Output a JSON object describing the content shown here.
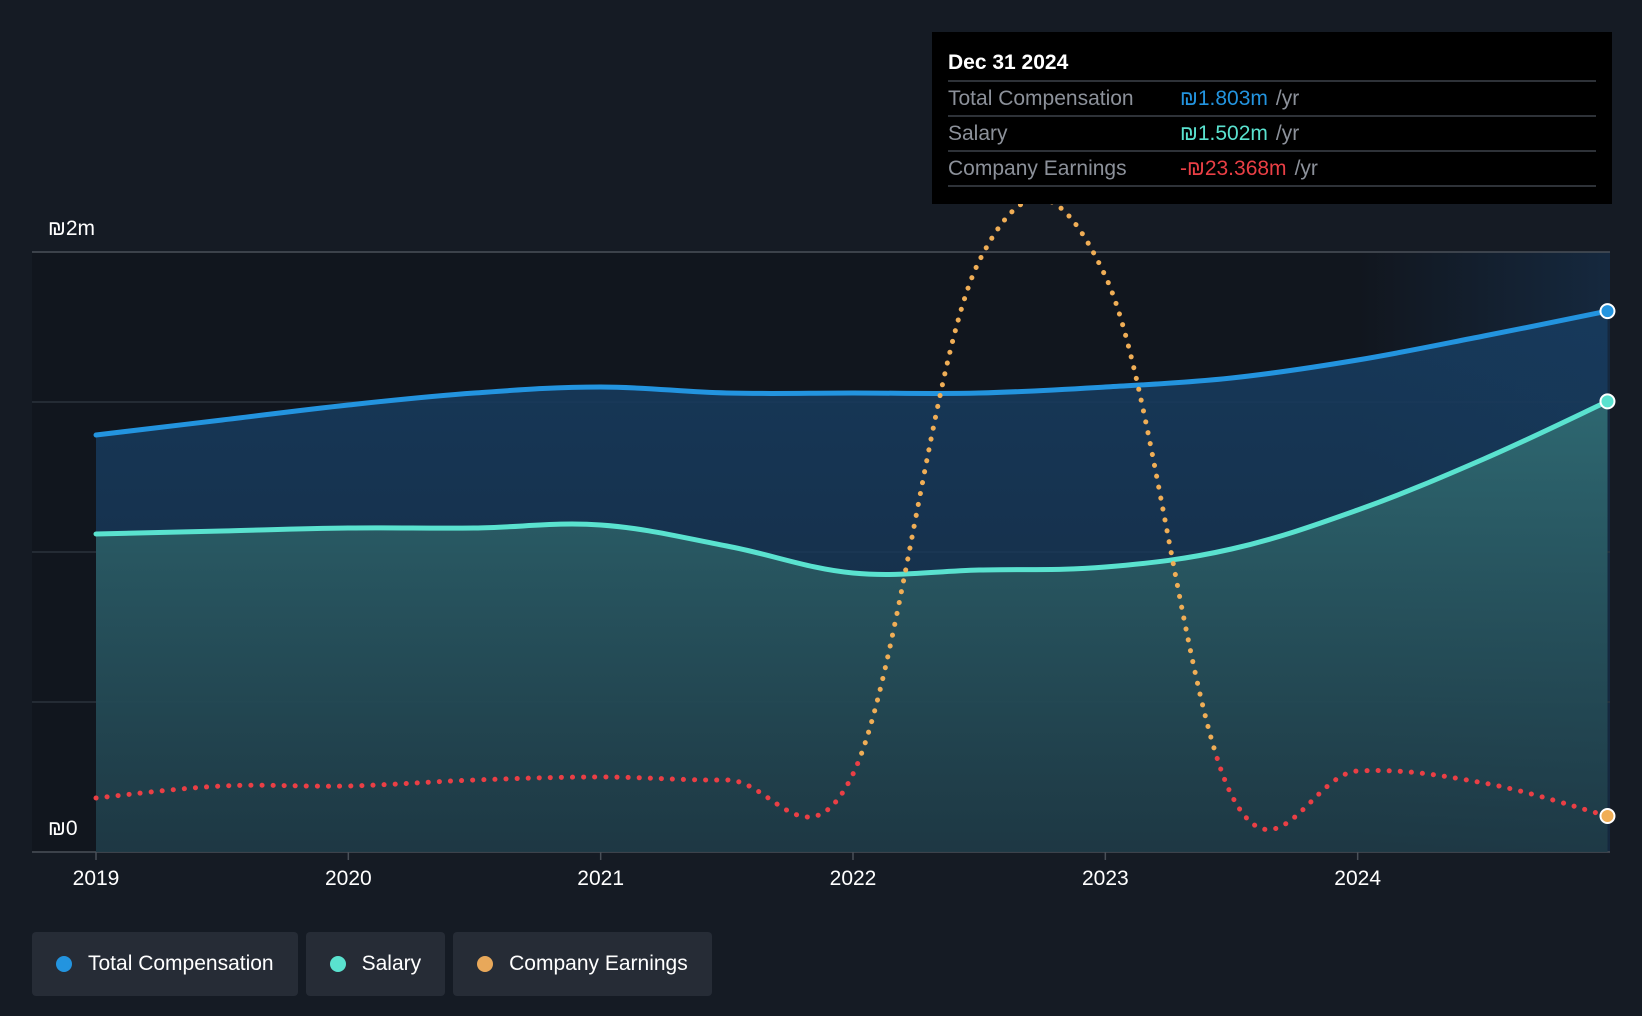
{
  "chart_data": {
    "type": "area",
    "x_ticks": [
      "2019",
      "2020",
      "2021",
      "2022",
      "2023",
      "2024"
    ],
    "y_ticks": [
      "₪0",
      "₪2m"
    ],
    "ylim": [
      0,
      2.0
    ],
    "xlim": [
      2019.0,
      2025.0
    ],
    "grid": true,
    "legend_position": "bottom-left",
    "series": [
      {
        "name": "Total Compensation",
        "color": "#2394df",
        "style": "solid-area",
        "points": [
          [
            2019.0,
            1.39
          ],
          [
            2019.5,
            1.44
          ],
          [
            2020.0,
            1.49
          ],
          [
            2020.5,
            1.53
          ],
          [
            2021.0,
            1.55
          ],
          [
            2021.5,
            1.53
          ],
          [
            2022.0,
            1.53
          ],
          [
            2022.5,
            1.53
          ],
          [
            2023.0,
            1.55
          ],
          [
            2023.5,
            1.58
          ],
          [
            2024.0,
            1.64
          ],
          [
            2024.5,
            1.72
          ],
          [
            2024.99,
            1.803
          ]
        ]
      },
      {
        "name": "Salary",
        "color": "#5ae2cf",
        "style": "solid-area",
        "points": [
          [
            2019.0,
            1.06
          ],
          [
            2019.5,
            1.07
          ],
          [
            2020.0,
            1.08
          ],
          [
            2020.5,
            1.08
          ],
          [
            2021.0,
            1.09
          ],
          [
            2021.5,
            1.02
          ],
          [
            2022.0,
            0.93
          ],
          [
            2022.5,
            0.94
          ],
          [
            2023.0,
            0.95
          ],
          [
            2023.5,
            1.01
          ],
          [
            2024.0,
            1.14
          ],
          [
            2024.5,
            1.31
          ],
          [
            2024.99,
            1.502
          ]
        ]
      },
      {
        "name": "Company Earnings",
        "color": "#f0ae56",
        "negative_color": "#ea3f45",
        "style": "dotted",
        "points": [
          [
            2019.0,
            0.18
          ],
          [
            2019.5,
            0.22
          ],
          [
            2020.0,
            0.22
          ],
          [
            2020.5,
            0.24
          ],
          [
            2021.0,
            0.25
          ],
          [
            2021.5,
            0.24
          ],
          [
            2022.0,
            0.26
          ],
          [
            2022.5,
            1.97
          ],
          [
            2023.0,
            1.92
          ],
          [
            2023.5,
            0.19
          ],
          [
            2024.0,
            0.27
          ],
          [
            2024.5,
            0.23
          ],
          [
            2024.99,
            0.12
          ]
        ]
      }
    ]
  },
  "tooltip": {
    "date": "Dec 31 2024",
    "rows": [
      {
        "label": "Total Compensation",
        "value": "₪1.803m",
        "unit": "/yr",
        "color": "#2394df"
      },
      {
        "label": "Salary",
        "value": "₪1.502m",
        "unit": "/yr",
        "color": "#5ae2cf"
      },
      {
        "label": "Company Earnings",
        "value": "-₪23.368m",
        "unit": "/yr",
        "color": "#ea3f45"
      }
    ]
  },
  "legend": {
    "items": [
      {
        "label": "Total Compensation",
        "color": "#2394df"
      },
      {
        "label": "Salary",
        "color": "#5ae2cf"
      },
      {
        "label": "Company Earnings",
        "color": "#e8a85a"
      }
    ]
  }
}
